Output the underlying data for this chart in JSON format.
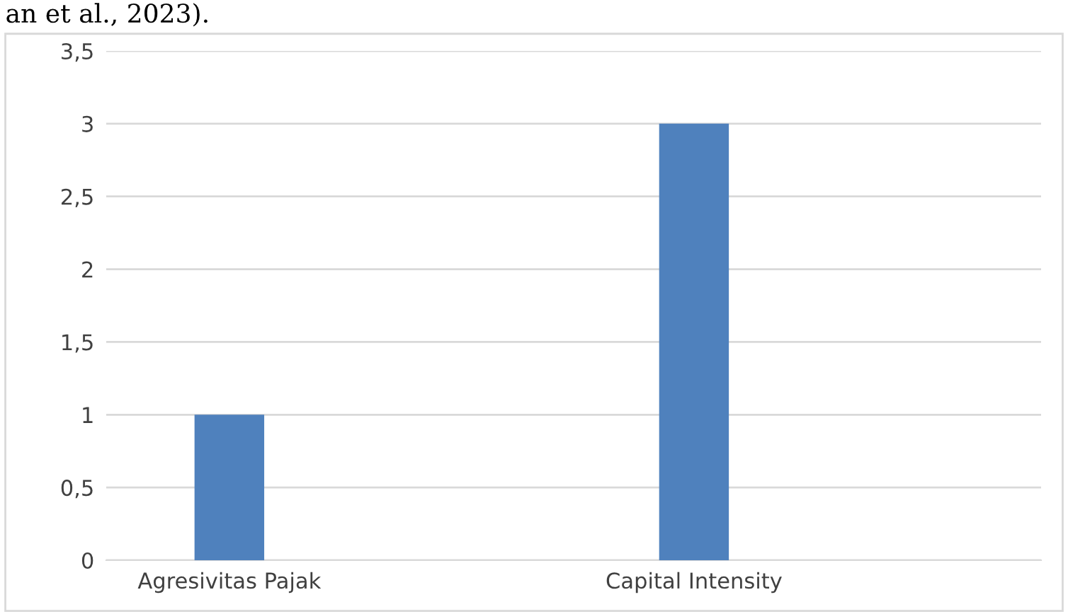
{
  "chart_data": {
    "type": "bar",
    "categories": [
      "Agresivitas Pajak",
      "Capital Intensity"
    ],
    "values": [
      1,
      3
    ],
    "color": "#4f81bd",
    "ylim": [
      0,
      3.5
    ],
    "yticks": [
      {
        "value": 0,
        "label": "0"
      },
      {
        "value": 0.5,
        "label": "0,5"
      },
      {
        "value": 1,
        "label": "1"
      },
      {
        "value": 1.5,
        "label": "1,5"
      },
      {
        "value": 2,
        "label": "2"
      },
      {
        "value": 2.5,
        "label": "2,5"
      },
      {
        "value": 3,
        "label": "3"
      },
      {
        "value": 3.5,
        "label": "3,5"
      }
    ],
    "grid": "y",
    "annotations": [
      "an et al., 2023)."
    ]
  }
}
